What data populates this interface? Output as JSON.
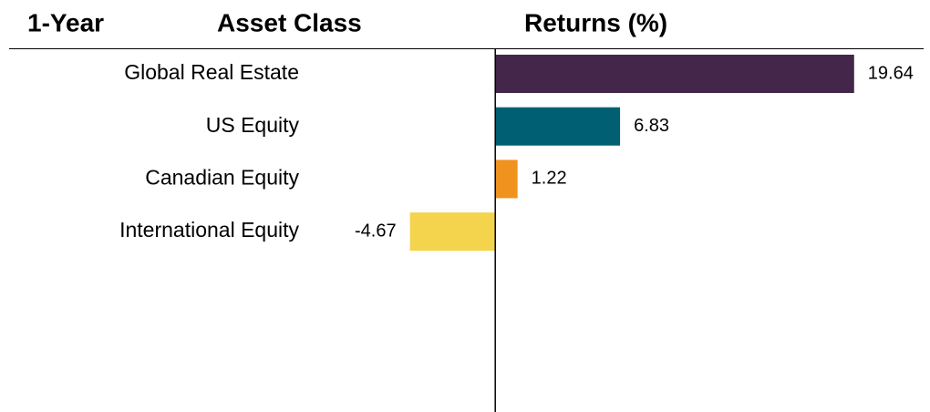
{
  "chart_data": {
    "type": "hbar",
    "headers": [
      "1-Year",
      "Asset Class",
      "Returns (%)"
    ],
    "categories": [
      "Global Real Estate",
      "US Equity",
      "Canadian Equity",
      "International Equity"
    ],
    "values": [
      19.64,
      6.83,
      1.22,
      -4.67
    ],
    "colors": [
      "#43264a",
      "#005f73",
      "#f0921e",
      "#f4d44d"
    ],
    "xlim": [
      -5,
      20
    ]
  }
}
